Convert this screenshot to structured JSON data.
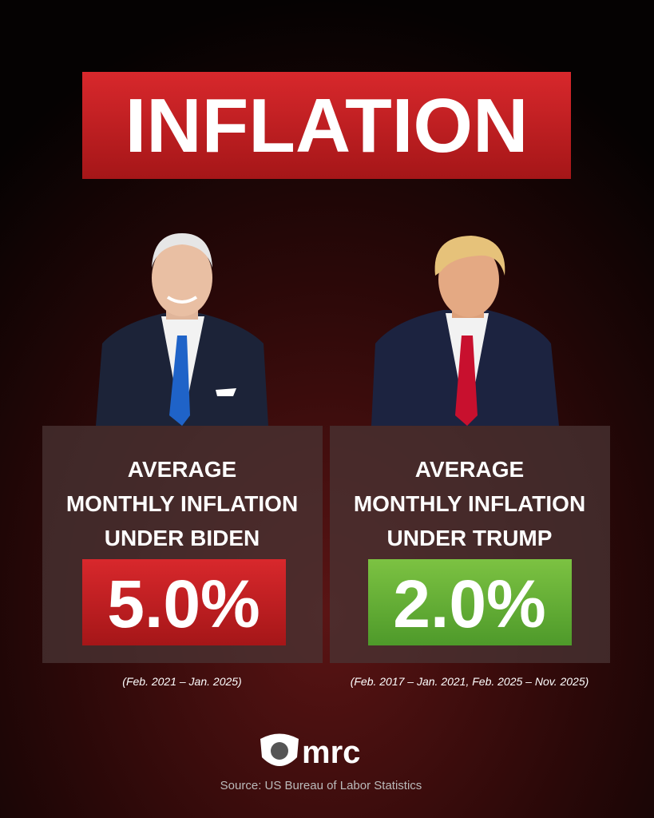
{
  "header": {
    "title": "INFLATION"
  },
  "panels": [
    {
      "heading": [
        "AVERAGE",
        "MONTHLY INFLATION",
        "UNDER BIDEN"
      ],
      "value": "5.0%",
      "period": "(Feb. 2021 – Jan. 2025)"
    },
    {
      "heading": [
        "AVERAGE",
        "MONTHLY INFLATION",
        "UNDER TRUMP"
      ],
      "value": "2.0%",
      "period": "(Feb. 2017 – Jan. 2021, Feb. 2025 – Nov. 2025)"
    }
  ],
  "footer": {
    "logo": "mrc",
    "source": "Source: US Bureau of Labor Statistics"
  }
}
